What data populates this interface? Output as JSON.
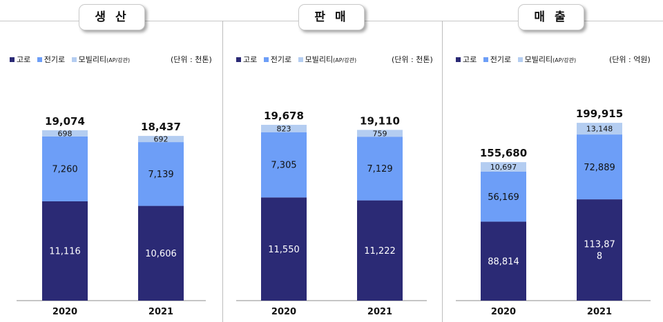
{
  "colors": {
    "furnace": "#2b2a75",
    "electric": "#6d9ef7",
    "mobility": "#b4cdf1"
  },
  "legend": {
    "furnace": "고로",
    "electric": "전기로",
    "mobility": "모빌리티",
    "mobility_suffix": "(AP/강관)"
  },
  "chart_data": [
    {
      "type": "bar",
      "title": "생 산",
      "unit": "(단위 : 천톤)",
      "categories": [
        "2020",
        "2021"
      ],
      "series": [
        {
          "name": "고로",
          "values": [
            11116,
            10606
          ],
          "labels": [
            "11,116",
            "10,606"
          ]
        },
        {
          "name": "전기로",
          "values": [
            7260,
            7139
          ],
          "labels": [
            "7,260",
            "7,139"
          ]
        },
        {
          "name": "모빌리티(AP/강관)",
          "values": [
            698,
            692
          ],
          "labels": [
            "698",
            "692"
          ]
        }
      ],
      "totals": [
        19074,
        18437
      ],
      "total_labels": [
        "19,074",
        "18,437"
      ],
      "ylim": [
        0,
        23000
      ]
    },
    {
      "type": "bar",
      "title": "판 매",
      "unit": "(단위 : 천톤)",
      "categories": [
        "2020",
        "2021"
      ],
      "series": [
        {
          "name": "고로",
          "values": [
            11550,
            11222
          ],
          "labels": [
            "11,550",
            "11,222"
          ]
        },
        {
          "name": "전기로",
          "values": [
            7305,
            7129
          ],
          "labels": [
            "7,305",
            "7,129"
          ]
        },
        {
          "name": "모빌리티(AP/강관)",
          "values": [
            823,
            759
          ],
          "labels": [
            "823",
            "759"
          ]
        }
      ],
      "totals": [
        19678,
        19110
      ],
      "total_labels": [
        "19,678",
        "19,110"
      ],
      "ylim": [
        0,
        23000
      ]
    },
    {
      "type": "bar",
      "title": "매 출",
      "unit": "(단위 : 억원)",
      "categories": [
        "2020",
        "2021"
      ],
      "series": [
        {
          "name": "고로",
          "values": [
            88814,
            113878
          ],
          "labels": [
            "88,814",
            "113,87|8"
          ]
        },
        {
          "name": "전기로",
          "values": [
            56169,
            72889
          ],
          "labels": [
            "56,169",
            "72,889"
          ]
        },
        {
          "name": "모빌리티(AP/강관)",
          "values": [
            10697,
            13148
          ],
          "labels": [
            "10,697",
            "13,148"
          ]
        }
      ],
      "totals": [
        155680,
        199915
      ],
      "total_labels": [
        "155,680",
        "199,915"
      ],
      "ylim": [
        0,
        231000
      ]
    }
  ]
}
